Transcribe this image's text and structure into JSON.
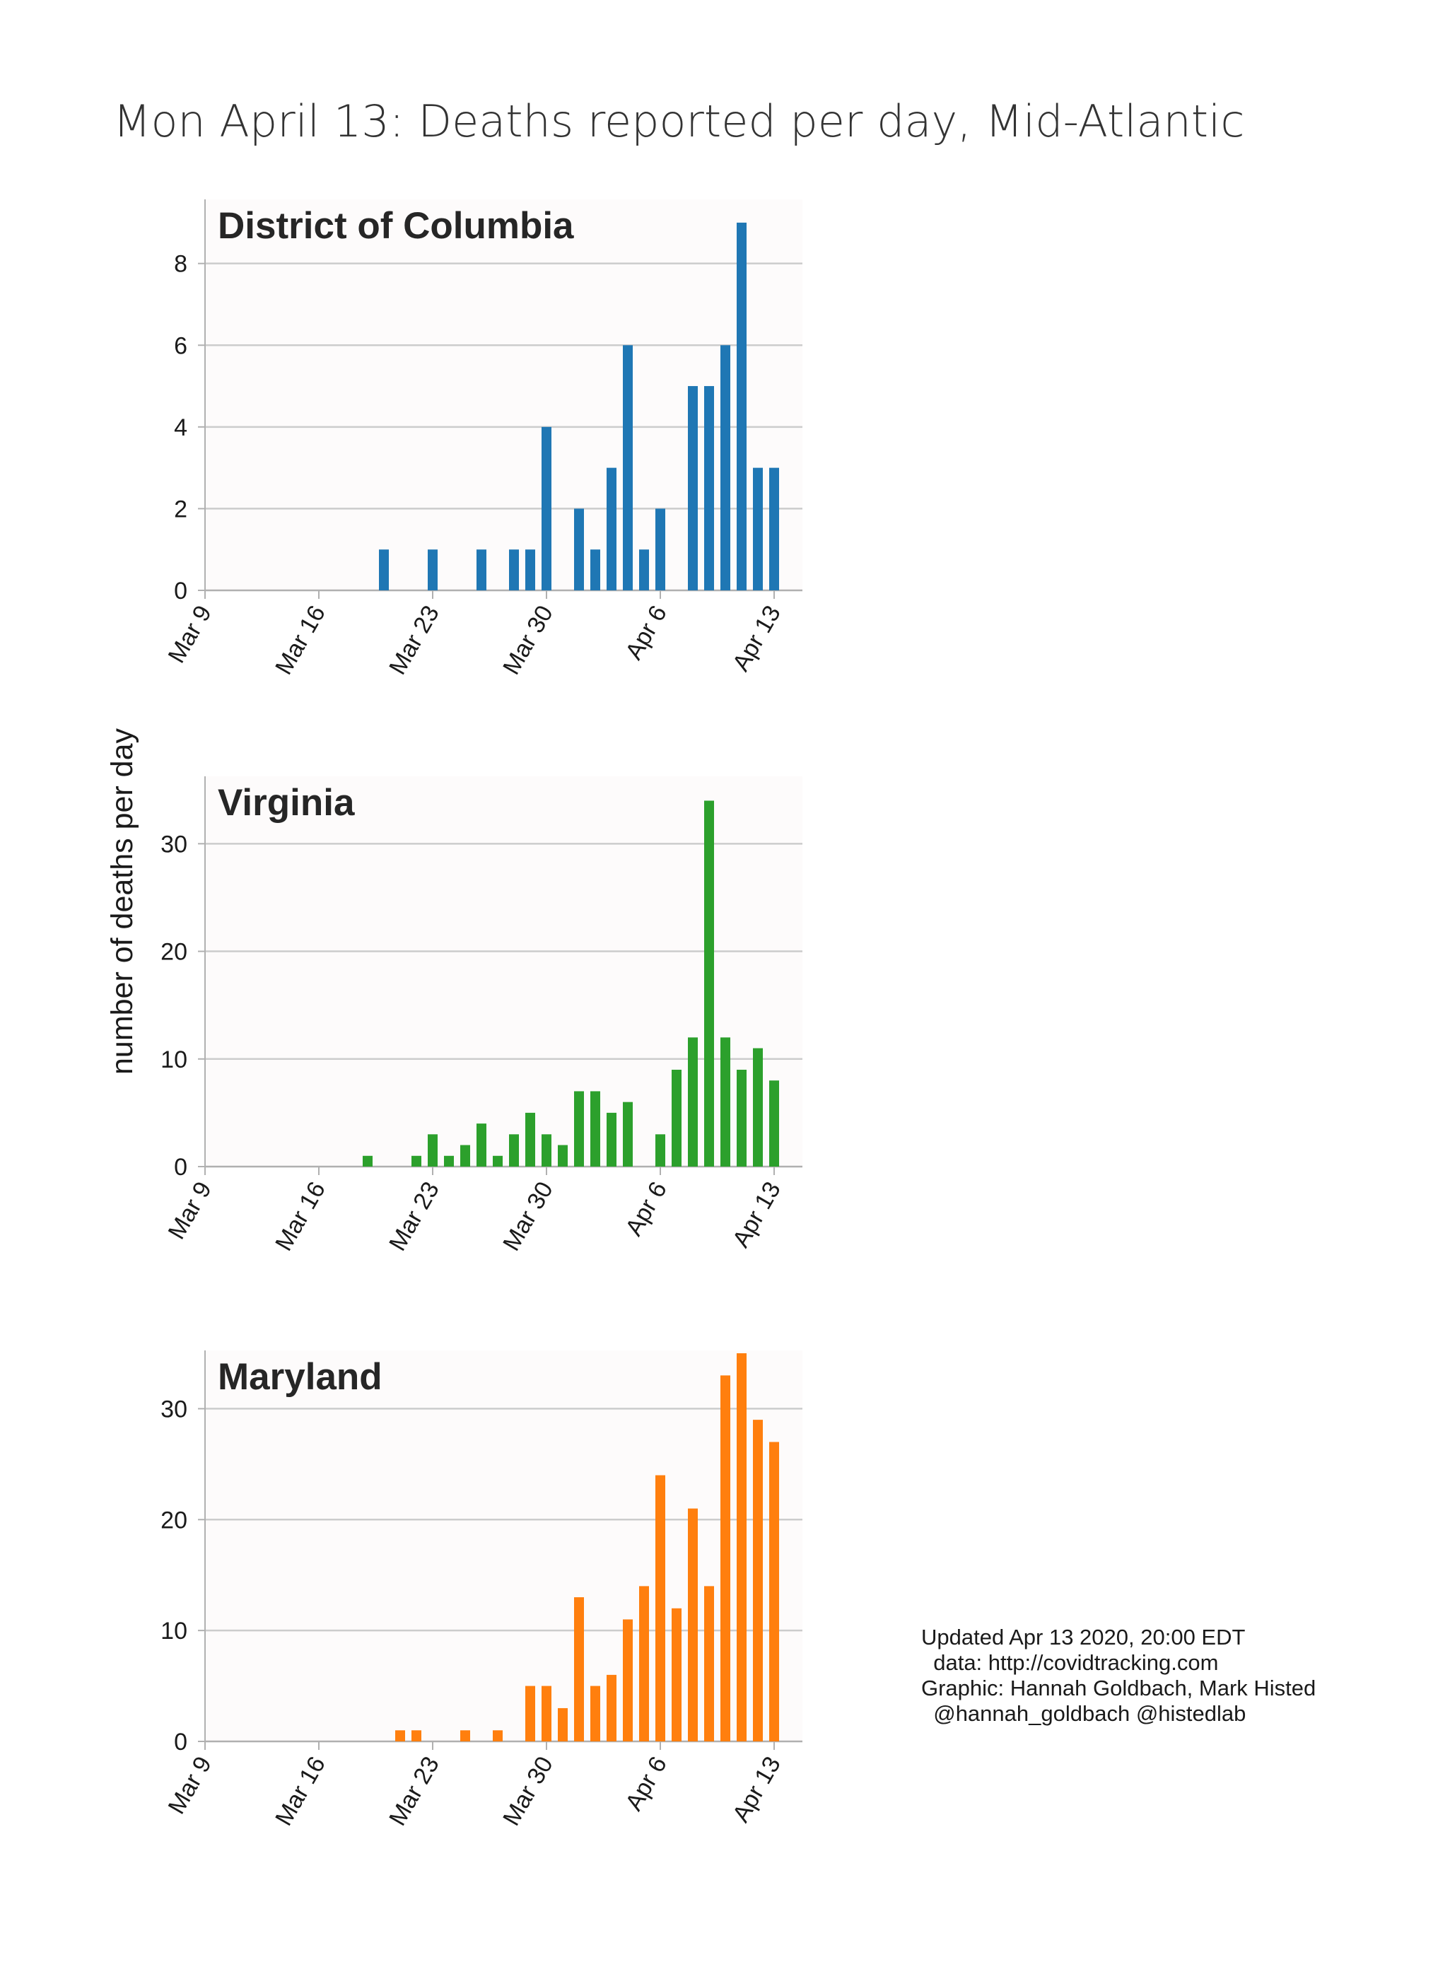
{
  "title": "Mon April 13: Deaths reported per day, Mid-Atlantic",
  "ylabel": "number of deaths per day",
  "colors": {
    "dc": "#1f77b4",
    "va": "#2ca02c",
    "md": "#ff7f0e",
    "panel_bg": "#fdfbfb",
    "grid": "#cccccc",
    "axis": "#b0b0b0"
  },
  "credits": {
    "line1": "Updated Apr 13 2020, 20:00 EDT",
    "line2": "  data: http://covidtracking.com",
    "line3": "Graphic: Hannah Goldbach, Mark Histed",
    "line4": "  @hannah_goldbach @histedlab"
  },
  "chart_data": [
    {
      "type": "bar",
      "title": "District of Columbia",
      "color": "#1f77b4",
      "x_ticks": [
        "Mar 9",
        "Mar 16",
        "Mar 23",
        "Mar 30",
        "Apr 6",
        "Apr 13"
      ],
      "xlim": [
        "Mar 9",
        "Apr 14"
      ],
      "ylim": [
        0,
        9.5
      ],
      "yticks": [
        0,
        2,
        4,
        6,
        8
      ],
      "grid": true,
      "x": [
        "Mar 20",
        "Mar 23",
        "Mar 26",
        "Mar 28",
        "Mar 29",
        "Mar 30",
        "Apr 1",
        "Apr 2",
        "Apr 3",
        "Apr 4",
        "Apr 5",
        "Apr 6",
        "Apr 8",
        "Apr 9",
        "Apr 10",
        "Apr 11",
        "Apr 12",
        "Apr 13"
      ],
      "values": [
        1,
        1,
        1,
        1,
        1,
        4,
        2,
        1,
        3,
        6,
        1,
        2,
        5,
        5,
        6,
        9,
        3,
        3
      ]
    },
    {
      "type": "bar",
      "title": "Virginia",
      "color": "#2ca02c",
      "x_ticks": [
        "Mar 9",
        "Mar 16",
        "Mar 23",
        "Mar 30",
        "Apr 6",
        "Apr 13"
      ],
      "xlim": [
        "Mar 9",
        "Apr 14"
      ],
      "ylim": [
        0,
        36
      ],
      "yticks": [
        0,
        10,
        20,
        30
      ],
      "grid": true,
      "x": [
        "Mar 19",
        "Mar 22",
        "Mar 23",
        "Mar 24",
        "Mar 25",
        "Mar 26",
        "Mar 27",
        "Mar 28",
        "Mar 29",
        "Mar 30",
        "Mar 31",
        "Apr 1",
        "Apr 2",
        "Apr 3",
        "Apr 4",
        "Apr 6",
        "Apr 7",
        "Apr 8",
        "Apr 9",
        "Apr 10",
        "Apr 11",
        "Apr 12",
        "Apr 13"
      ],
      "values": [
        1,
        1,
        3,
        1,
        2,
        4,
        1,
        3,
        5,
        3,
        2,
        7,
        7,
        5,
        6,
        3,
        9,
        12,
        34,
        12,
        9,
        11,
        8
      ]
    },
    {
      "type": "bar",
      "title": "Maryland",
      "color": "#ff7f0e",
      "x_ticks": [
        "Mar 9",
        "Mar 16",
        "Mar 23",
        "Mar 30",
        "Apr 6",
        "Apr 13"
      ],
      "xlim": [
        "Mar 9",
        "Apr 14"
      ],
      "ylim": [
        0,
        35
      ],
      "yticks": [
        0,
        10,
        20,
        30
      ],
      "grid": true,
      "x": [
        "Mar 21",
        "Mar 22",
        "Mar 25",
        "Mar 27",
        "Mar 29",
        "Mar 30",
        "Mar 31",
        "Apr 1",
        "Apr 2",
        "Apr 3",
        "Apr 4",
        "Apr 5",
        "Apr 6",
        "Apr 7",
        "Apr 8",
        "Apr 9",
        "Apr 10",
        "Apr 11",
        "Apr 12",
        "Apr 13"
      ],
      "values": [
        1,
        1,
        1,
        1,
        5,
        5,
        3,
        13,
        5,
        6,
        11,
        14,
        24,
        12,
        21,
        14,
        33,
        35,
        29,
        27
      ]
    }
  ]
}
